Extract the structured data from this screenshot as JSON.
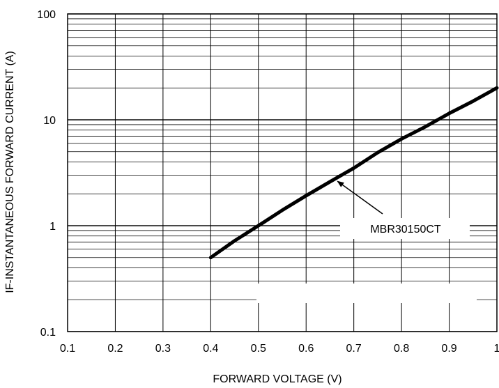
{
  "chart_data": {
    "type": "line",
    "xlabel": "FORWARD VOLTAGE (V)",
    "ylabel": "IF-INSTANTANEOUS FORWARD CURRENT (A)",
    "x_ticks": [
      "0.1",
      "0.2",
      "0.3",
      "0.4",
      "0.5",
      "0.6",
      "0.7",
      "0.8",
      "0.9",
      "1"
    ],
    "y_ticks": [
      "0.1",
      "1",
      "10",
      "100"
    ],
    "xlim": [
      0.1,
      1.0
    ],
    "ylim": [
      0.1,
      100
    ],
    "y_scale": "log",
    "grid": true,
    "series": [
      {
        "name": "MBR30150CT",
        "x": [
          0.4,
          0.45,
          0.5,
          0.55,
          0.6,
          0.65,
          0.7,
          0.75,
          0.8,
          0.85,
          0.9,
          0.95,
          1.0
        ],
        "y": [
          0.5,
          0.72,
          1.0,
          1.4,
          1.92,
          2.6,
          3.5,
          4.9,
          6.6,
          8.6,
          11.5,
          15,
          20
        ]
      }
    ],
    "annotations": [
      {
        "text": "MBR30150CT",
        "points_to": {
          "x": 0.66,
          "y": 2.75
        }
      }
    ]
  },
  "colors": {
    "line": "#000000",
    "grid": "#000000",
    "background": "#ffffff"
  }
}
